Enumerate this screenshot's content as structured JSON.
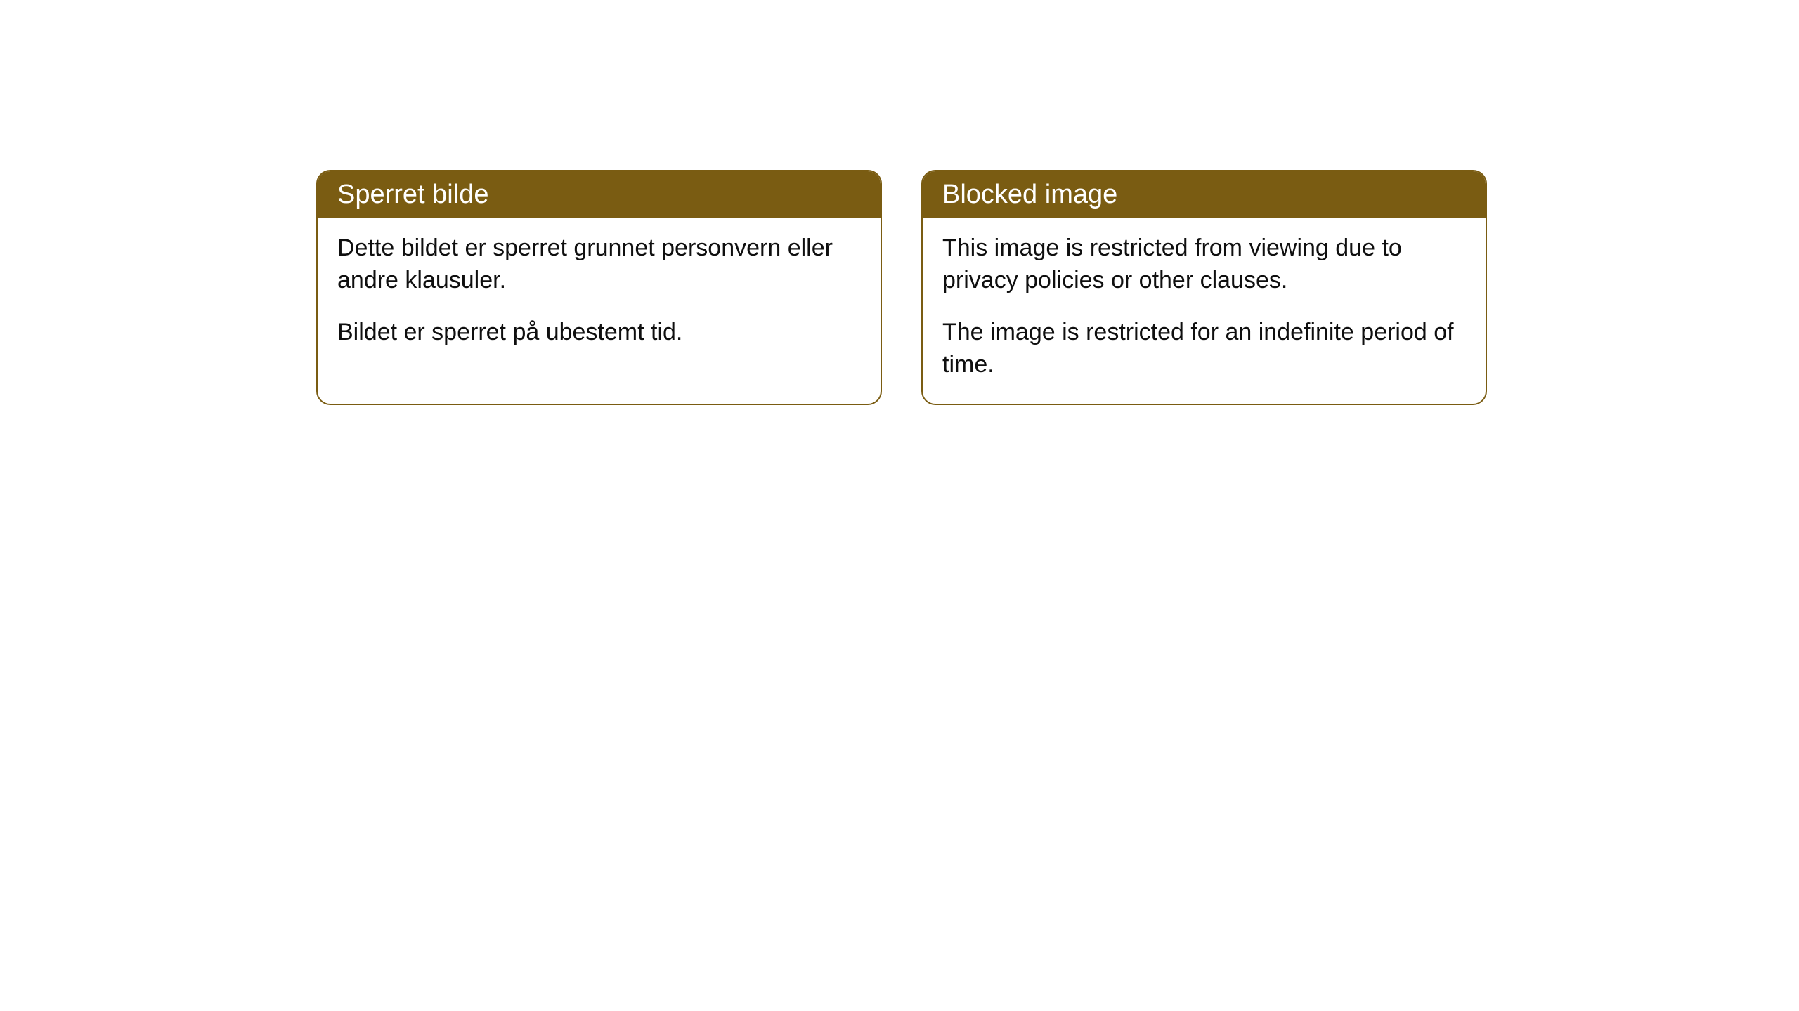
{
  "cards": [
    {
      "title": "Sperret bilde",
      "para1": "Dette bildet er sperret grunnet personvern eller andre klausuler.",
      "para2": "Bildet er sperret på ubestemt tid."
    },
    {
      "title": "Blocked image",
      "para1": "This image is restricted from viewing due to privacy policies or other clauses.",
      "para2": "The image is restricted for an indefinite period of time."
    }
  ],
  "style": {
    "header_bg": "#7a5c12",
    "header_text": "#ffffff",
    "border_color": "#7a5c12",
    "body_text": "#0f0f0f",
    "page_bg": "#ffffff",
    "border_radius": 20,
    "header_fontsize": 38,
    "body_fontsize": 34
  }
}
